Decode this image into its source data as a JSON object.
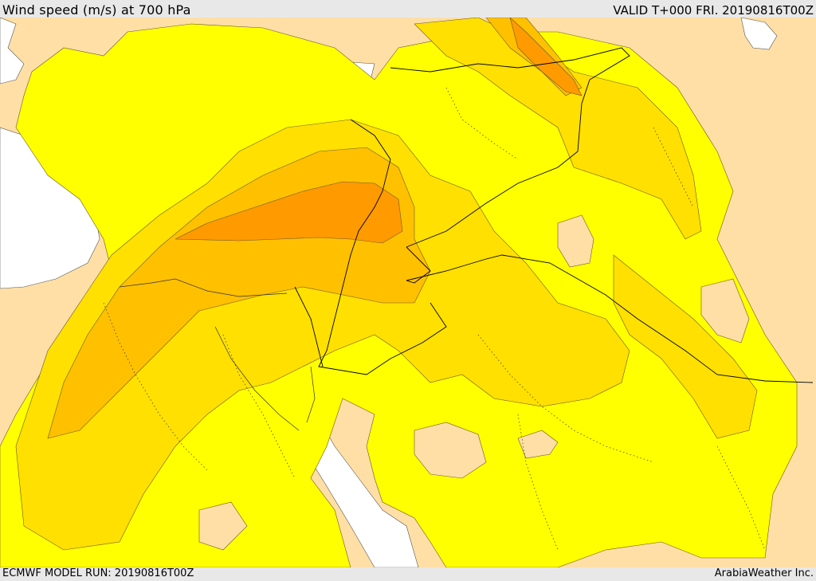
{
  "header": {
    "title": "Wind speed (m/s) at 700 hPa",
    "valid": "VALID T+000 FRI. 20190816T00Z"
  },
  "footer": {
    "model_run": "ECMWF MODEL RUN: 20190816T00Z",
    "credit": "ArabiaWeather Inc."
  },
  "colors": {
    "sea": "#ffffff",
    "land_calm": "#ffdfa6",
    "band_1": "#ffff00",
    "band_2": "#ffe000",
    "band_3": "#ffc000",
    "band_4": "#ff9a00",
    "contour": "#6b5a2a",
    "border": "#000000"
  }
}
